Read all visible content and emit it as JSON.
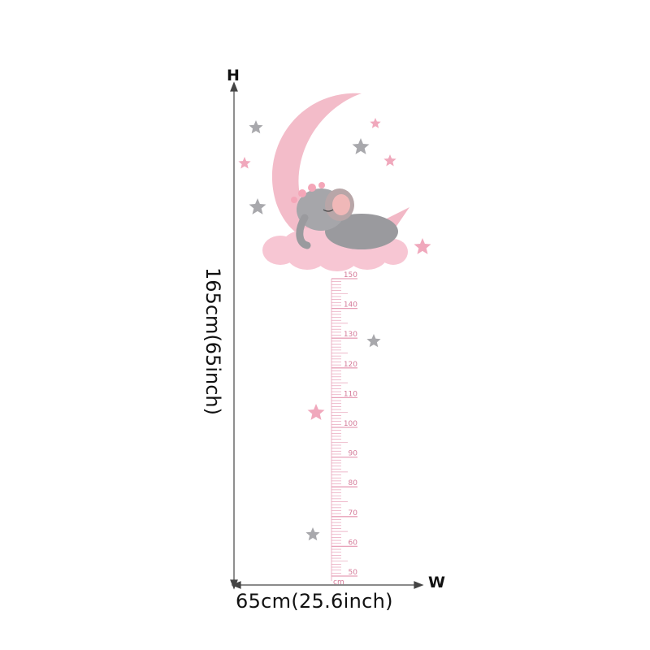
{
  "dimensions": {
    "height_axis_label": "H",
    "width_axis_label": "W",
    "height_text": "165cm(65inch)",
    "width_text": "65cm(25.6inch)"
  },
  "ruler": {
    "unit": "cm",
    "tick_labels": [
      "150",
      "140",
      "130",
      "120",
      "110",
      "100",
      "90",
      "80",
      "70",
      "60",
      "50"
    ],
    "color": "#e8a0b8"
  },
  "illustration": {
    "subject": "sleeping elephant on pink crescent moon and clouds with stars",
    "colors": {
      "moon": "#f2b8c6",
      "cloud": "#f7c6d3",
      "elephant": "#9a9a9e",
      "star_gray": "#a8a8ac",
      "star_pink": "#f0a8bc"
    }
  }
}
